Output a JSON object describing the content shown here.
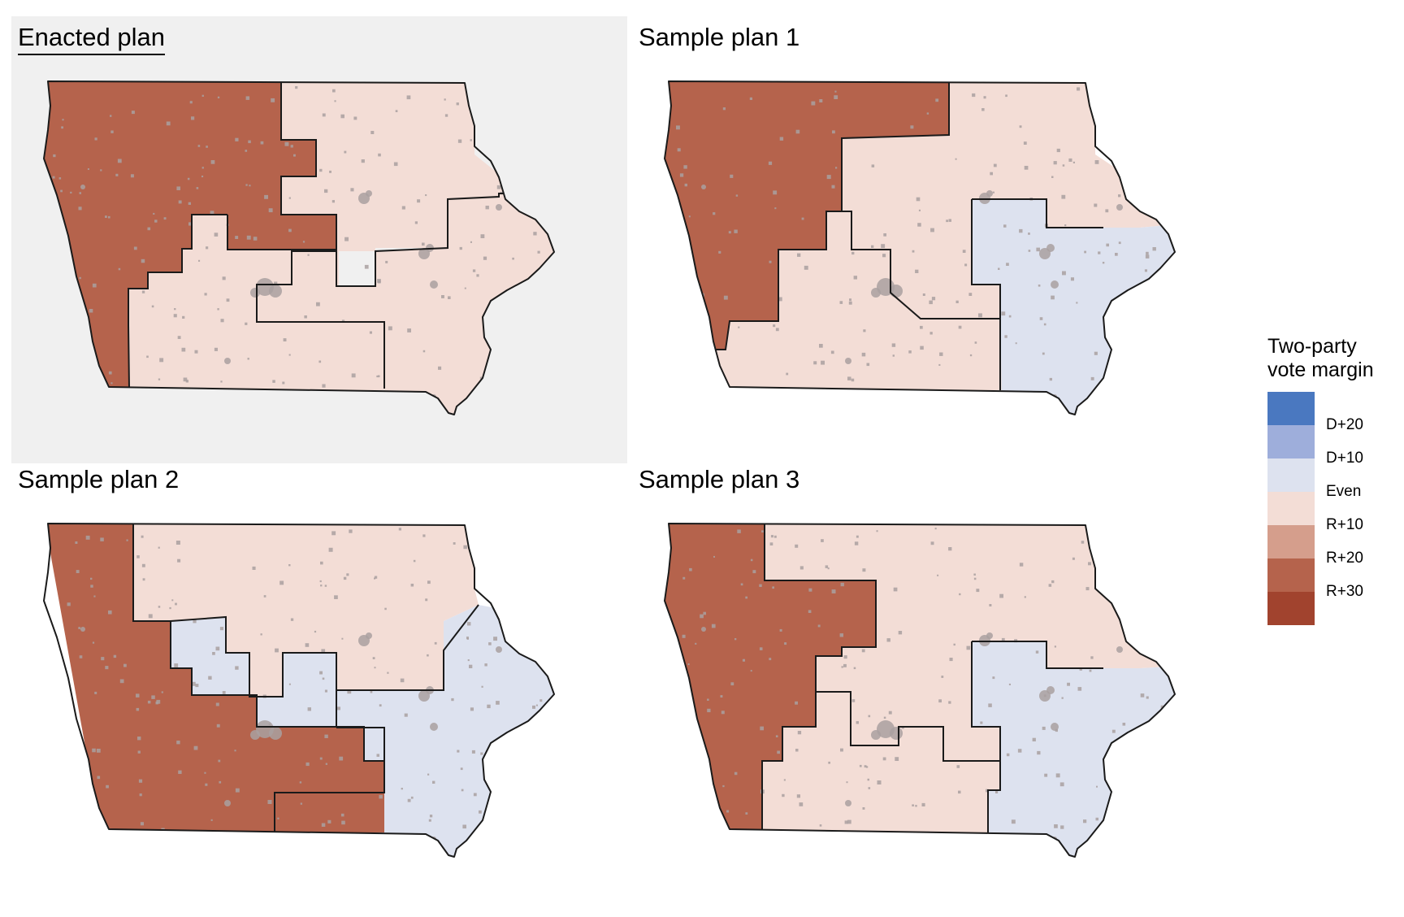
{
  "panels": [
    {
      "title": "Enacted plan",
      "highlighted": true,
      "districts": [
        {
          "id": "1",
          "color": "#b5634c"
        },
        {
          "id": "2",
          "color": "#f3ddd6"
        },
        {
          "id": "3",
          "color": "#f3ddd6"
        },
        {
          "id": "4",
          "color": "#f3ddd6"
        }
      ]
    },
    {
      "title": "Sample plan 1",
      "highlighted": false,
      "districts": [
        {
          "id": "1",
          "color": "#b5634c"
        },
        {
          "id": "2",
          "color": "#f3ddd6"
        },
        {
          "id": "3",
          "color": "#f3ddd6"
        },
        {
          "id": "4",
          "color": "#dde2ef"
        }
      ]
    },
    {
      "title": "Sample plan 2",
      "highlighted": false,
      "districts": [
        {
          "id": "1",
          "color": "#b5634c"
        },
        {
          "id": "2",
          "color": "#f3ddd6"
        },
        {
          "id": "3",
          "color": "#dde2ef"
        },
        {
          "id": "4",
          "color": "#dde2ef"
        }
      ]
    },
    {
      "title": "Sample plan 3",
      "highlighted": false,
      "districts": [
        {
          "id": "1",
          "color": "#b5634c"
        },
        {
          "id": "2",
          "color": "#f3ddd6"
        },
        {
          "id": "3",
          "color": "#f3ddd6"
        },
        {
          "id": "4",
          "color": "#dde2ef"
        }
      ]
    }
  ],
  "legend": {
    "title_line1": "Two-party",
    "title_line2": "vote margin",
    "colors": [
      "#4a78c0",
      "#9eaedb",
      "#dde2ef",
      "#f3ddd6",
      "#d59e8c",
      "#b5634c",
      "#a1432e"
    ],
    "labels": [
      "D+20",
      "D+10",
      "Even",
      "R+10",
      "R+20",
      "R+30"
    ]
  }
}
